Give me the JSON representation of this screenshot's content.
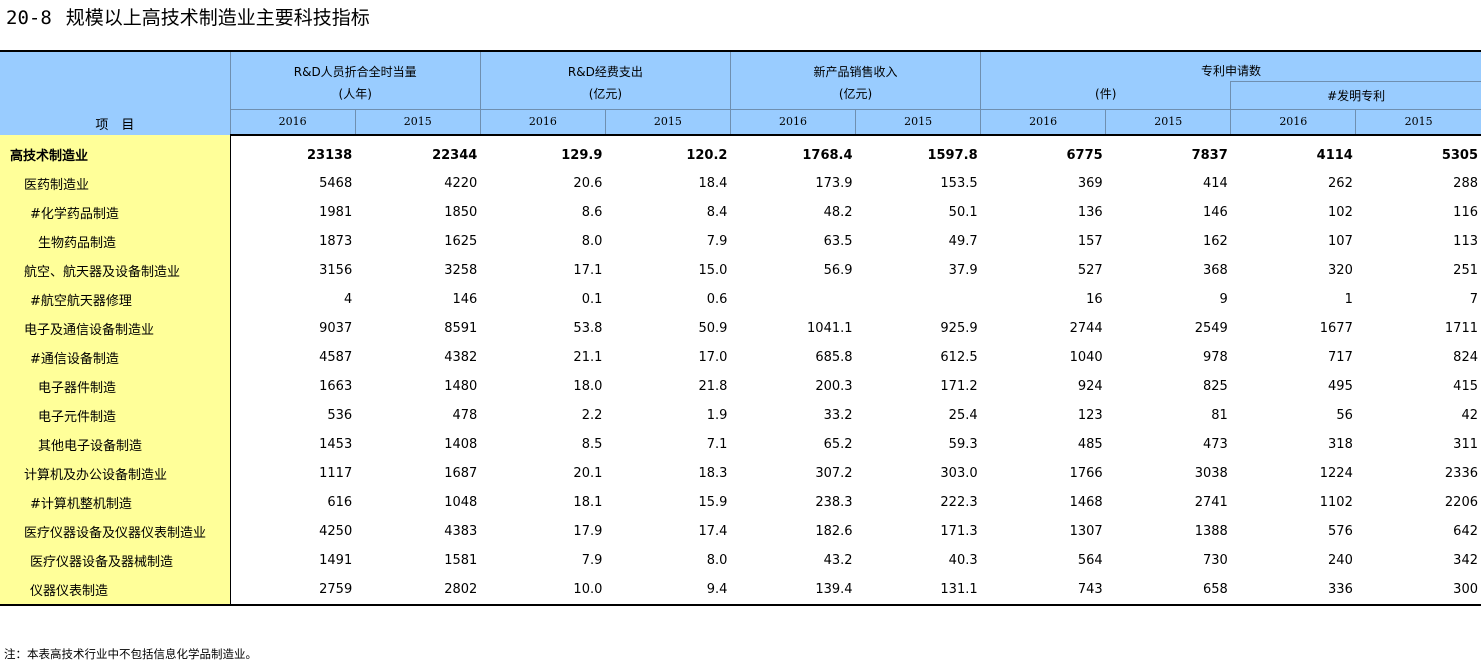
{
  "title": {
    "code": "20-8",
    "text": "规模以上高技术制造业主要科技指标"
  },
  "header": {
    "item_label": "项　目",
    "groups": [
      {
        "name": "R&D人员折合全时当量",
        "unit": "(人年)"
      },
      {
        "name": "R&D经费支出",
        "unit": "(亿元)"
      },
      {
        "name": "新产品销售收入",
        "unit": "(亿元)"
      },
      {
        "name": "专利申请数",
        "unit": "(件)"
      }
    ],
    "subgroup": "#发明专利",
    "years": [
      "2016",
      "2015",
      "2016",
      "2015",
      "2016",
      "2015",
      "2016",
      "2015",
      "2016",
      "2015"
    ]
  },
  "rows": [
    {
      "name": "高技术制造业",
      "values": [
        "23138",
        "22344",
        "129.9",
        "120.2",
        "1768.4",
        "1597.8",
        "6775",
        "7837",
        "4114",
        "5305"
      ]
    },
    {
      "name": "医药制造业",
      "values": [
        "5468",
        "4220",
        "20.6",
        "18.4",
        "173.9",
        "153.5",
        "369",
        "414",
        "262",
        "288"
      ]
    },
    {
      "name": "#化学药品制造",
      "values": [
        "1981",
        "1850",
        "8.6",
        "8.4",
        "48.2",
        "50.1",
        "136",
        "146",
        "102",
        "116"
      ]
    },
    {
      "name": "生物药品制造",
      "values": [
        "1873",
        "1625",
        "8.0",
        "7.9",
        "63.5",
        "49.7",
        "157",
        "162",
        "107",
        "113"
      ]
    },
    {
      "name": "航空、航天器及设备制造业",
      "values": [
        "3156",
        "3258",
        "17.1",
        "15.0",
        "56.9",
        "37.9",
        "527",
        "368",
        "320",
        "251"
      ]
    },
    {
      "name": "#航空航天器修理",
      "values": [
        "4",
        "146",
        "0.1",
        "0.6",
        "",
        "",
        "16",
        "9",
        "1",
        "7"
      ]
    },
    {
      "name": "电子及通信设备制造业",
      "values": [
        "9037",
        "8591",
        "53.8",
        "50.9",
        "1041.1",
        "925.9",
        "2744",
        "2549",
        "1677",
        "1711"
      ]
    },
    {
      "name": "#通信设备制造",
      "values": [
        "4587",
        "4382",
        "21.1",
        "17.0",
        "685.8",
        "612.5",
        "1040",
        "978",
        "717",
        "824"
      ]
    },
    {
      "name": "电子器件制造",
      "values": [
        "1663",
        "1480",
        "18.0",
        "21.8",
        "200.3",
        "171.2",
        "924",
        "825",
        "495",
        "415"
      ]
    },
    {
      "name": "电子元件制造",
      "values": [
        "536",
        "478",
        "2.2",
        "1.9",
        "33.2",
        "25.4",
        "123",
        "81",
        "56",
        "42"
      ]
    },
    {
      "name": "其他电子设备制造",
      "values": [
        "1453",
        "1408",
        "8.5",
        "7.1",
        "65.2",
        "59.3",
        "485",
        "473",
        "318",
        "311"
      ]
    },
    {
      "name": "计算机及办公设备制造业",
      "values": [
        "1117",
        "1687",
        "20.1",
        "18.3",
        "307.2",
        "303.0",
        "1766",
        "3038",
        "1224",
        "2336"
      ]
    },
    {
      "name": "#计算机整机制造",
      "values": [
        "616",
        "1048",
        "18.1",
        "15.9",
        "238.3",
        "222.3",
        "1468",
        "2741",
        "1102",
        "2206"
      ]
    },
    {
      "name": "医疗仪器设备及仪器仪表制造业",
      "values": [
        "4250",
        "4383",
        "17.9",
        "17.4",
        "182.6",
        "171.3",
        "1307",
        "1388",
        "576",
        "642"
      ]
    },
    {
      "name": "医疗仪器设备及器械制造",
      "values": [
        "1491",
        "1581",
        "7.9",
        "8.0",
        "43.2",
        "40.3",
        "564",
        "730",
        "240",
        "342"
      ]
    },
    {
      "name": "仪器仪表制造",
      "values": [
        "2759",
        "2802",
        "10.0",
        "9.4",
        "139.4",
        "131.1",
        "743",
        "658",
        "336",
        "300"
      ]
    }
  ],
  "note": "注：本表高技术行业中不包括信息化学品制造业。"
}
